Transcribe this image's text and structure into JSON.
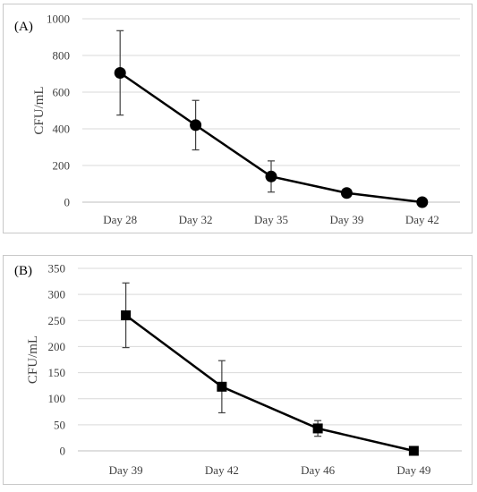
{
  "chart_data": [
    {
      "type": "line",
      "panel_label": "(A)",
      "ylabel": "CFU/mL",
      "xlabel": "",
      "ylim": [
        0,
        1000
      ],
      "yticks": [
        0,
        200,
        400,
        600,
        800,
        1000
      ],
      "categories": [
        "Day 28",
        "Day 32",
        "Day 35",
        "Day 39",
        "Day 42"
      ],
      "marker": "circle",
      "series": [
        {
          "values": [
            705,
            420,
            140,
            50,
            0
          ],
          "error": [
            230,
            135,
            85,
            0,
            0
          ]
        }
      ],
      "grid": true,
      "legend": "none"
    },
    {
      "type": "line",
      "panel_label": "(B)",
      "ylabel": "CFU/mL",
      "xlabel": "",
      "ylim": [
        0,
        350
      ],
      "yticks": [
        0,
        50,
        100,
        150,
        200,
        250,
        300,
        350
      ],
      "categories": [
        "Day 39",
        "Day 42",
        "Day 46",
        "Day 49"
      ],
      "marker": "square",
      "series": [
        {
          "values": [
            260,
            123,
            43,
            0
          ],
          "error": [
            62,
            50,
            15,
            0
          ]
        }
      ],
      "grid": true,
      "legend": "none"
    }
  ]
}
